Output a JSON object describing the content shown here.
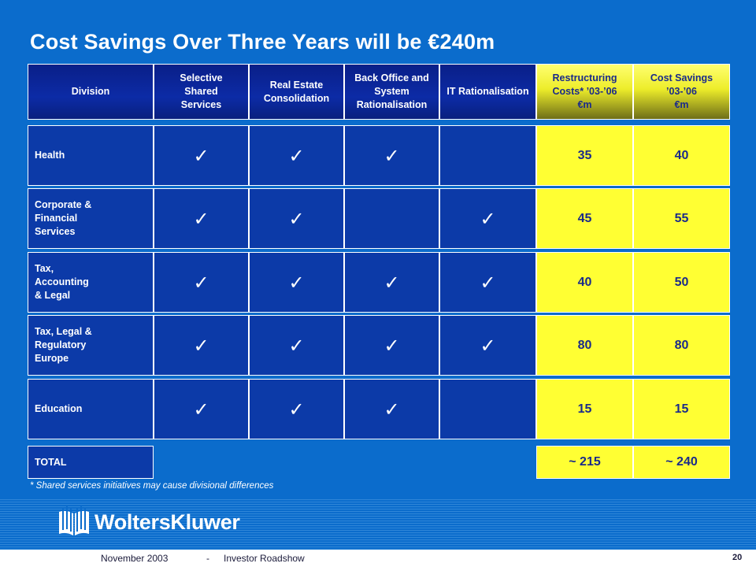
{
  "title": "Cost Savings Over Three Years will be €240m",
  "headers": {
    "division": "Division",
    "col1": "Selective Shared Services",
    "col2": "Real Estate Consolidation",
    "col3": "Back Office and System Rationalisation",
    "col4": "IT Rationalisation",
    "restructuring": [
      "Restructuring",
      "Costs* ’03-’06",
      "€m"
    ],
    "savings": [
      "Cost Savings",
      "’03-’06",
      "€m"
    ]
  },
  "rows": [
    {
      "label": [
        "Health"
      ],
      "checks": [
        true,
        true,
        true,
        false
      ],
      "restructuring": "35",
      "savings": "40"
    },
    {
      "label": [
        "Corporate &",
        "Financial",
        "Services"
      ],
      "checks": [
        true,
        true,
        false,
        true
      ],
      "restructuring": "45",
      "savings": "55"
    },
    {
      "label": [
        "Tax,",
        "Accounting",
        "& Legal"
      ],
      "checks": [
        true,
        true,
        true,
        true
      ],
      "restructuring": "40",
      "savings": "50"
    },
    {
      "label": [
        "Tax, Legal &",
        "Regulatory",
        "Europe"
      ],
      "checks": [
        true,
        true,
        true,
        true
      ],
      "restructuring": "80",
      "savings": "80"
    },
    {
      "label": [
        "Education"
      ],
      "checks": [
        true,
        true,
        true,
        false
      ],
      "restructuring": "15",
      "savings": "15"
    }
  ],
  "total": {
    "label": "TOTAL",
    "restructuring": "~ 215",
    "savings": "~ 240"
  },
  "footnote": "* Shared services initiatives may cause divisional differences",
  "check_glyph": "✓",
  "logo": {
    "icon": "book-icon",
    "text": "WoltersKluwer"
  },
  "footer": {
    "date": "November 2003",
    "separator": "-",
    "event": "Investor Roadshow",
    "page": "20"
  },
  "colors": {
    "background": "#0b6ccc",
    "cell_blue": "#0c3aa8",
    "header_navy": "#0a1f88",
    "highlight_yellow": "#ffff33",
    "yellow_text": "#1a2a8a"
  }
}
